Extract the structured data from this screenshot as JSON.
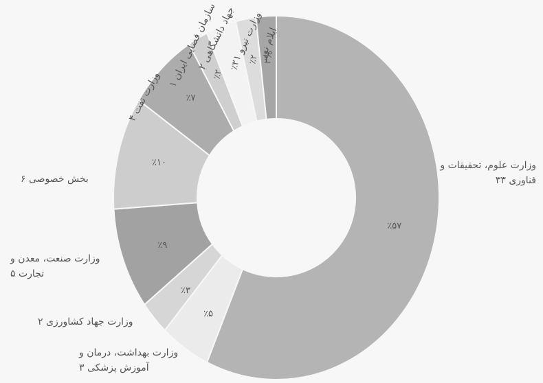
{
  "chart_data": {
    "type": "donut",
    "categories": [
      "وزارت علوم، تحقیقات و فناوری ۳۳",
      "وزارت بهداشت، درمان و آموزش پزشکی ۳",
      "وزارت جهاد کشاورزی ۲",
      "وزارت صنعت، معدن و تجارت ۵",
      "بخش خصوصی ۶",
      "وزارت نفت ۴",
      "سازمان فضایی ایران ۱",
      "جهاد دانشگاهی ۲",
      "وزارت نیرو ۱",
      "ایلام نور"
    ],
    "values": [
      57,
      5,
      3,
      9,
      10,
      7,
      2,
      3,
      2,
      2
    ],
    "value_labels": [
      "٪۵۷",
      "٪۵",
      "٪۳",
      "٪۹",
      "٪۱۰",
      "٪۷",
      "٪۲",
      "٪۳",
      "٪۲",
      "۲%"
    ],
    "colors": [
      "#b4b4b4",
      "#ebebeb",
      "#d6d6d6",
      "#a2a2a2",
      "#cdcdcd",
      "#acacac",
      "#cfcfcf",
      "#f3f3f3",
      "#dcdcdc",
      "#a6a6a6"
    ]
  }
}
